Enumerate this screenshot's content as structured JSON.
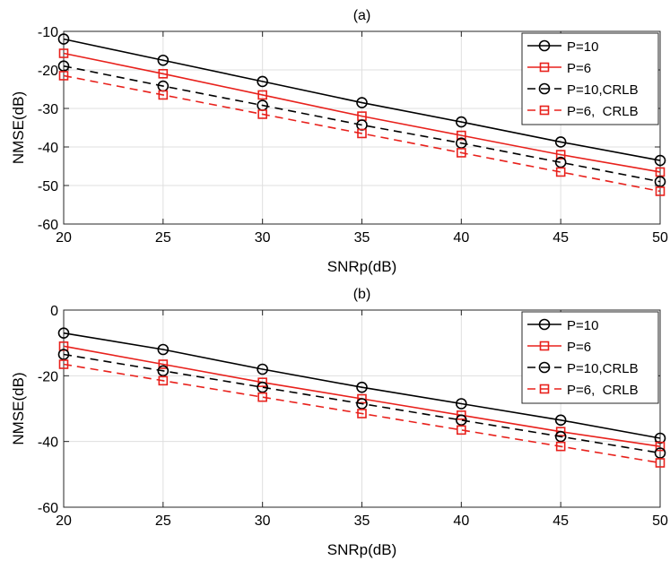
{
  "chart_data": [
    {
      "type": "line",
      "title": "(a)",
      "xlabel": "SNRp(dB)",
      "ylabel": "NMSE(dB)",
      "x": [
        20,
        25,
        30,
        35,
        40,
        45,
        50
      ],
      "xlim": [
        20,
        50
      ],
      "ylim": [
        -60,
        -10
      ],
      "xticks": [
        20,
        25,
        30,
        35,
        40,
        45,
        50
      ],
      "yticks": [
        -60,
        -50,
        -40,
        -30,
        -20,
        -10
      ],
      "grid": true,
      "legend_position": "top-right",
      "series": [
        {
          "name": "P=10",
          "color": "#000000",
          "dash": "solid",
          "marker": "circle",
          "values": [
            -12.0,
            -17.5,
            -23.0,
            -28.5,
            -33.5,
            -38.7,
            -43.5
          ]
        },
        {
          "name": "P=6",
          "color": "#e8211c",
          "dash": "solid",
          "marker": "square",
          "values": [
            -15.7,
            -21.0,
            -26.5,
            -32.0,
            -37.0,
            -42.0,
            -46.5
          ]
        },
        {
          "name": "P=10,CRLB",
          "color": "#000000",
          "dash": "dashed",
          "marker": "circle",
          "values": [
            -19.0,
            -24.2,
            -29.2,
            -34.3,
            -39.0,
            -44.0,
            -49.0
          ]
        },
        {
          "name": "P=6,  CRLB",
          "color": "#e8211c",
          "dash": "dashed",
          "marker": "square",
          "values": [
            -21.5,
            -26.5,
            -31.5,
            -36.5,
            -41.5,
            -46.5,
            -51.5
          ]
        }
      ]
    },
    {
      "type": "line",
      "title": "(b)",
      "xlabel": "SNRp(dB)",
      "ylabel": "NMSE(dB)",
      "x": [
        20,
        25,
        30,
        35,
        40,
        45,
        50
      ],
      "xlim": [
        20,
        50
      ],
      "ylim": [
        -60,
        0
      ],
      "xticks": [
        20,
        25,
        30,
        35,
        40,
        45,
        50
      ],
      "yticks": [
        -60,
        -40,
        -20,
        0
      ],
      "grid": true,
      "legend_position": "top-right",
      "series": [
        {
          "name": "P=10",
          "color": "#000000",
          "dash": "solid",
          "marker": "circle",
          "values": [
            -7.0,
            -12.0,
            -18.0,
            -23.5,
            -28.5,
            -33.5,
            -39.0
          ]
        },
        {
          "name": "P=6",
          "color": "#e8211c",
          "dash": "solid",
          "marker": "square",
          "values": [
            -11.0,
            -16.5,
            -22.0,
            -27.0,
            -32.0,
            -37.0,
            -41.5
          ]
        },
        {
          "name": "P=10,CRLB",
          "color": "#000000",
          "dash": "dashed",
          "marker": "circle",
          "values": [
            -13.5,
            -18.5,
            -23.5,
            -28.5,
            -33.5,
            -38.5,
            -43.5
          ]
        },
        {
          "name": "P=6,  CRLB",
          "color": "#e8211c",
          "dash": "dashed",
          "marker": "square",
          "values": [
            -16.5,
            -21.5,
            -26.5,
            -31.5,
            -36.5,
            -41.5,
            -46.5
          ]
        }
      ]
    }
  ]
}
